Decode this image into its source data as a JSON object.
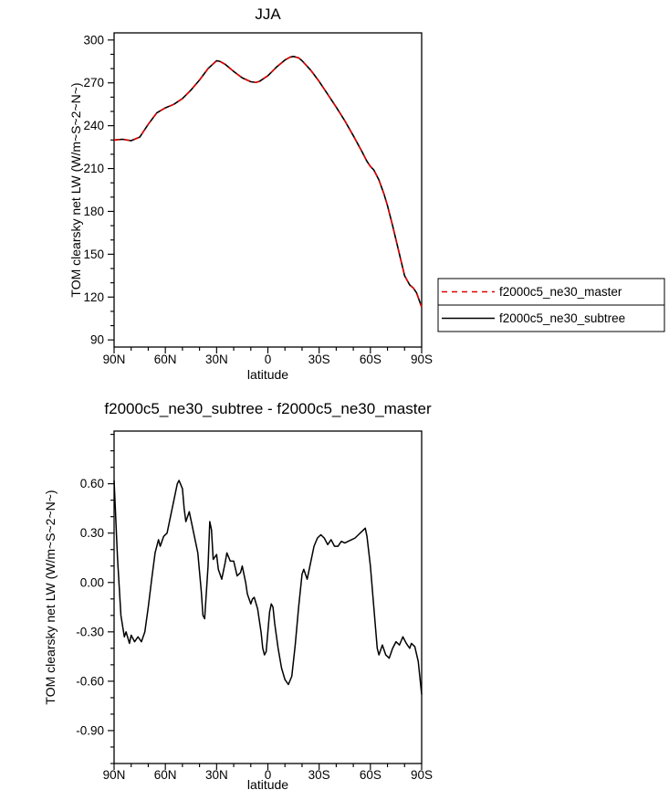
{
  "page": {
    "background": "#ffffff",
    "text_color": "#000000"
  },
  "chart_data": [
    {
      "type": "line",
      "title": "JJA",
      "xlabel": "latitude",
      "ylabel": "TOM clearsky net LW (W/m~S~2~N~)",
      "xlim": [
        90,
        -90
      ],
      "ylim": [
        85,
        305
      ],
      "x_major_ticks": [
        90,
        60,
        30,
        0,
        -30,
        -60,
        -90
      ],
      "x_tick_labels": [
        "90N",
        "60N",
        "30N",
        "0",
        "30S",
        "60S",
        "90S"
      ],
      "x_minor_step": 10,
      "y_major_ticks": [
        90,
        120,
        150,
        180,
        210,
        240,
        270,
        300
      ],
      "y_tick_labels": [
        "90",
        "120",
        "150",
        "180",
        "210",
        "240",
        "270",
        "300"
      ],
      "y_minor_step": 10,
      "grid": false,
      "legend": {
        "position": "outside-right-bottom",
        "entries": [
          {
            "label": "f2000c5_ne30_master",
            "color": "#e00000",
            "dash": "6,5"
          },
          {
            "label": "f2000c5_ne30_subtree",
            "color": "#000000",
            "dash": ""
          }
        ]
      },
      "x": [
        90,
        85,
        80,
        75,
        70,
        65,
        60,
        55,
        50,
        45,
        40,
        35,
        30,
        28,
        25,
        20,
        15,
        10,
        7,
        5,
        0,
        -5,
        -10,
        -13,
        -15,
        -18,
        -20,
        -25,
        -30,
        -35,
        -40,
        -45,
        -50,
        -55,
        -58,
        -60,
        -62,
        -65,
        -68,
        -70,
        -73,
        -75,
        -78,
        -80,
        -83,
        -85,
        -87,
        -90
      ],
      "series": [
        {
          "name": "f2000c5_ne30_subtree",
          "color": "#000000",
          "dash": "",
          "values": [
            230,
            230.5,
            229.5,
            232,
            241,
            249,
            252.5,
            255,
            259,
            265,
            272,
            280,
            285.5,
            285,
            283,
            278,
            273.5,
            270.8,
            270.3,
            271,
            275,
            281,
            286,
            288,
            288.5,
            287.5,
            285.5,
            279,
            271,
            262,
            253,
            243.5,
            233,
            222,
            215,
            211.5,
            209,
            202,
            192,
            184,
            170,
            160,
            145,
            135,
            128.5,
            126.5,
            123,
            113
          ]
        },
        {
          "name": "f2000c5_ne30_master",
          "color": "#e00000",
          "dash": "6,5",
          "values": [
            230,
            230.5,
            229.5,
            232,
            241,
            249,
            252.5,
            255,
            259,
            265,
            272,
            280,
            285.5,
            285,
            283,
            278,
            273.5,
            270.8,
            270.3,
            271,
            275,
            281,
            286,
            288,
            288.5,
            287.5,
            285.5,
            279,
            271,
            262,
            253,
            243.5,
            233,
            222,
            215,
            211.5,
            209,
            202,
            192,
            184,
            170,
            160,
            145,
            135,
            128.5,
            126.5,
            123,
            113
          ]
        }
      ]
    },
    {
      "type": "line",
      "title": "f2000c5_ne30_subtree - f2000c5_ne30_master",
      "xlabel": "latitude",
      "ylabel": "TOM clearsky net LW (W/m~S~2~N~)",
      "xlim": [
        90,
        -90
      ],
      "ylim": [
        -1.1,
        0.92
      ],
      "x_major_ticks": [
        90,
        60,
        30,
        0,
        -30,
        -60,
        -90
      ],
      "x_tick_labels": [
        "90N",
        "60N",
        "30N",
        "0",
        "30S",
        "60S",
        "90S"
      ],
      "x_minor_step": 10,
      "y_major_ticks": [
        -0.9,
        -0.6,
        -0.3,
        0.0,
        0.3,
        0.6
      ],
      "y_tick_labels": [
        "-0.90",
        "-0.60",
        "-0.30",
        "0.00",
        "0.30",
        "0.60"
      ],
      "y_minor_step": 0.1,
      "grid": false,
      "legend": null,
      "x": [
        90,
        88,
        86,
        84,
        83,
        81,
        80,
        78,
        76,
        74,
        72,
        70,
        68,
        66,
        64,
        63,
        61,
        59,
        57,
        55,
        53,
        52,
        50,
        49,
        48,
        46,
        45,
        43,
        41,
        39,
        38,
        37,
        35,
        34,
        33,
        32,
        30,
        29,
        27,
        25,
        24,
        22,
        20,
        18,
        16,
        15,
        13,
        12,
        10,
        9,
        8,
        6,
        4,
        3,
        2,
        1,
        0,
        -1,
        -2,
        -3,
        -4,
        -6,
        -8,
        -10,
        -12,
        -14,
        -16,
        -18,
        -20,
        -21,
        -23,
        -25,
        -27,
        -29,
        -31,
        -33,
        -35,
        -37,
        -39,
        -41,
        -43,
        -45,
        -47,
        -49,
        -51,
        -53,
        -55,
        -57,
        -58,
        -60,
        -62,
        -64,
        -65,
        -67,
        -69,
        -71,
        -73,
        -75,
        -77,
        -79,
        -81,
        -83,
        -84,
        -86,
        -88,
        -90
      ],
      "series": [
        {
          "name": "difference",
          "color": "#000000",
          "dash": "",
          "values": [
            0.62,
            0.15,
            -0.2,
            -0.33,
            -0.3,
            -0.37,
            -0.32,
            -0.36,
            -0.33,
            -0.36,
            -0.3,
            -0.15,
            0.02,
            0.18,
            0.26,
            0.22,
            0.28,
            0.3,
            0.4,
            0.5,
            0.6,
            0.62,
            0.57,
            0.45,
            0.37,
            0.43,
            0.38,
            0.28,
            0.18,
            -0.05,
            -0.2,
            -0.22,
            0.1,
            0.37,
            0.32,
            0.14,
            0.17,
            0.08,
            0.02,
            0.12,
            0.18,
            0.13,
            0.13,
            0.04,
            0.06,
            0.1,
            0.0,
            -0.07,
            -0.13,
            -0.1,
            -0.09,
            -0.16,
            -0.3,
            -0.4,
            -0.44,
            -0.42,
            -0.3,
            -0.18,
            -0.13,
            -0.15,
            -0.25,
            -0.4,
            -0.52,
            -0.59,
            -0.62,
            -0.57,
            -0.38,
            -0.15,
            0.05,
            0.08,
            0.02,
            0.12,
            0.22,
            0.27,
            0.29,
            0.27,
            0.23,
            0.26,
            0.22,
            0.22,
            0.25,
            0.24,
            0.25,
            0.26,
            0.27,
            0.29,
            0.31,
            0.33,
            0.28,
            0.1,
            -0.15,
            -0.4,
            -0.44,
            -0.38,
            -0.44,
            -0.46,
            -0.4,
            -0.36,
            -0.38,
            -0.33,
            -0.37,
            -0.4,
            -0.37,
            -0.39,
            -0.48,
            -0.68
          ]
        }
      ]
    }
  ]
}
